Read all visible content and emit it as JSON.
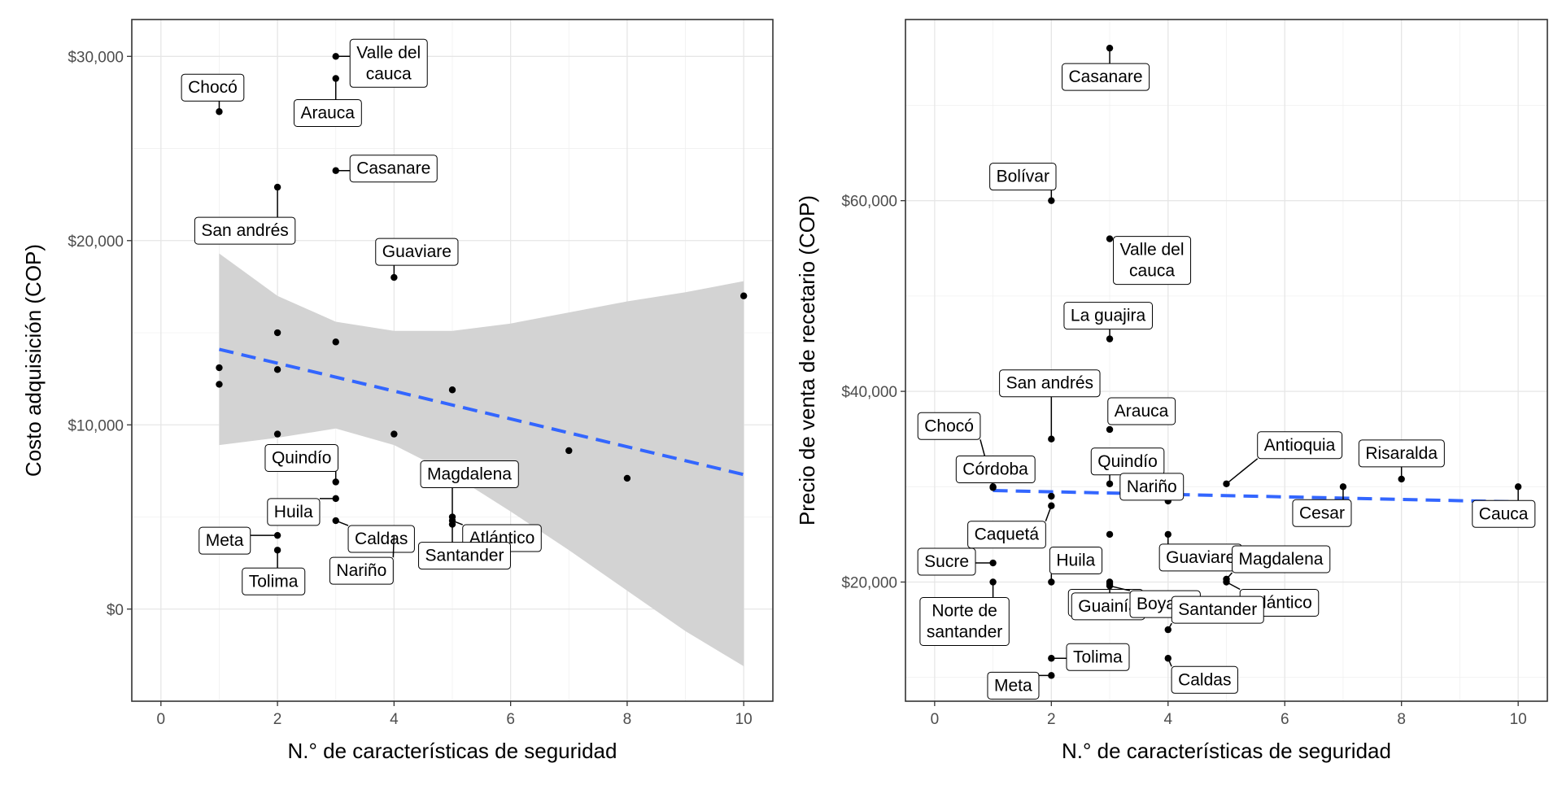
{
  "chart_data": [
    {
      "type": "scatter",
      "xlabel": "N.° de características de seguridad",
      "ylabel": "Costo adquisición (COP)",
      "xlim": [
        -0.5,
        10.5
      ],
      "ylim": [
        -5000,
        32000
      ],
      "x_ticks": [
        0,
        2,
        4,
        6,
        8,
        10
      ],
      "x_tick_labels": [
        "0",
        "2",
        "4",
        "6",
        "8",
        "10"
      ],
      "y_ticks": [
        0,
        10000,
        20000,
        30000
      ],
      "y_tick_labels": [
        "$0",
        "$10,000",
        "$20,000",
        "$30,000"
      ],
      "grid": true,
      "points": [
        {
          "x": 1,
          "y": 27000,
          "label": "Chocó"
        },
        {
          "x": 3,
          "y": 30000,
          "label": "Valle del\ncauca"
        },
        {
          "x": 3,
          "y": 28800,
          "label": "Arauca"
        },
        {
          "x": 3,
          "y": 23800,
          "label": "Casanare"
        },
        {
          "x": 2,
          "y": 22900,
          "label": "San andrés"
        },
        {
          "x": 4,
          "y": 18000,
          "label": "Guaviare"
        },
        {
          "x": 10,
          "y": 17000,
          "label": ""
        },
        {
          "x": 2,
          "y": 15000,
          "label": ""
        },
        {
          "x": 3,
          "y": 14500,
          "label": ""
        },
        {
          "x": 1,
          "y": 13100,
          "label": ""
        },
        {
          "x": 2,
          "y": 13000,
          "label": ""
        },
        {
          "x": 1,
          "y": 12200,
          "label": ""
        },
        {
          "x": 5,
          "y": 11900,
          "label": ""
        },
        {
          "x": 2,
          "y": 9500,
          "label": ""
        },
        {
          "x": 4,
          "y": 9500,
          "label": ""
        },
        {
          "x": 7,
          "y": 8600,
          "label": ""
        },
        {
          "x": 8,
          "y": 7100,
          "label": ""
        },
        {
          "x": 3,
          "y": 6900,
          "label": "Quindío"
        },
        {
          "x": 3,
          "y": 6000,
          "label": "Huila"
        },
        {
          "x": 3,
          "y": 4800,
          "label": "Caldas"
        },
        {
          "x": 5,
          "y": 5000,
          "label": "Magdalena"
        },
        {
          "x": 5,
          "y": 4800,
          "label": "Atlántico"
        },
        {
          "x": 5,
          "y": 4600,
          "label": "Santander"
        },
        {
          "x": 2,
          "y": 4000,
          "label": "Meta"
        },
        {
          "x": 4,
          "y": 4000,
          "label": "Nariño"
        },
        {
          "x": 4,
          "y": 3500,
          "label": ""
        },
        {
          "x": 2,
          "y": 3200,
          "label": "Tolima"
        }
      ],
      "trend": {
        "x": [
          1,
          10
        ],
        "y": [
          14100,
          7300
        ],
        "style": "dashed",
        "color": "#3366FF"
      },
      "confidence_band": {
        "x": [
          1,
          2,
          3,
          4,
          5,
          6,
          7,
          8,
          9,
          10
        ],
        "upper": [
          19300,
          17000,
          15600,
          15100,
          15100,
          15500,
          16100,
          16700,
          17200,
          17800
        ],
        "lower": [
          8900,
          9300,
          9800,
          8900,
          7300,
          5300,
          3200,
          1000,
          -1200,
          -3100
        ],
        "color": "#d3d3d3"
      }
    },
    {
      "type": "scatter",
      "xlabel": "N.° de características de seguridad",
      "ylabel": "Precio de venta de recetario (COP)",
      "xlim": [
        -0.5,
        10.5
      ],
      "ylim": [
        7500,
        79000
      ],
      "x_ticks": [
        0,
        2,
        4,
        6,
        8,
        10
      ],
      "x_tick_labels": [
        "0",
        "2",
        "4",
        "6",
        "8",
        "10"
      ],
      "y_ticks": [
        20000,
        40000,
        60000
      ],
      "y_tick_labels": [
        "$20,000",
        "$40,000",
        "$60,000"
      ],
      "grid": true,
      "points": [
        {
          "x": 3,
          "y": 76000,
          "label": "Casanare"
        },
        {
          "x": 2,
          "y": 60000,
          "label": "Bolívar"
        },
        {
          "x": 3,
          "y": 56000,
          "label": "Valle del\ncauca"
        },
        {
          "x": 3,
          "y": 45500,
          "label": "La guajira"
        },
        {
          "x": 2,
          "y": 35000,
          "label": "San andrés"
        },
        {
          "x": 3,
          "y": 36000,
          "label": "Arauca"
        },
        {
          "x": 1,
          "y": 30000,
          "label": "Chocó"
        },
        {
          "x": 1,
          "y": 29900,
          "label": "Córdoba"
        },
        {
          "x": 3,
          "y": 30300,
          "label": "Quindío"
        },
        {
          "x": 5,
          "y": 30300,
          "label": "Antioquia"
        },
        {
          "x": 8,
          "y": 30800,
          "label": "Risaralda"
        },
        {
          "x": 7,
          "y": 30000,
          "label": "Cesar"
        },
        {
          "x": 10,
          "y": 30000,
          "label": "Cauca"
        },
        {
          "x": 4,
          "y": 28500,
          "label": "Nariño"
        },
        {
          "x": 2,
          "y": 29000,
          "label": ""
        },
        {
          "x": 2,
          "y": 28000,
          "label": "Caquetá"
        },
        {
          "x": 3,
          "y": 25000,
          "label": ""
        },
        {
          "x": 4,
          "y": 25000,
          "label": "Guaviare"
        },
        {
          "x": 1,
          "y": 22000,
          "label": "Sucre"
        },
        {
          "x": 1,
          "y": 20000,
          "label": "Norte de\nsantander"
        },
        {
          "x": 2,
          "y": 20000,
          "label": "Huila"
        },
        {
          "x": 3,
          "y": 20000,
          "label": "Vichada"
        },
        {
          "x": 3,
          "y": 19800,
          "label": "Guainía"
        },
        {
          "x": 3,
          "y": 19600,
          "label": "Boyacá"
        },
        {
          "x": 5,
          "y": 20300,
          "label": "Magdalena"
        },
        {
          "x": 5,
          "y": 20000,
          "label": "Atlántico"
        },
        {
          "x": 4,
          "y": 15000,
          "label": "Santander"
        },
        {
          "x": 2,
          "y": 12000,
          "label": "Tolima"
        },
        {
          "x": 4,
          "y": 12000,
          "label": "Caldas"
        },
        {
          "x": 2,
          "y": 10200,
          "label": "Meta"
        }
      ],
      "trend": {
        "x": [
          1,
          10
        ],
        "y": [
          29600,
          28400
        ],
        "style": "dashed",
        "color": "#3366FF"
      }
    }
  ]
}
